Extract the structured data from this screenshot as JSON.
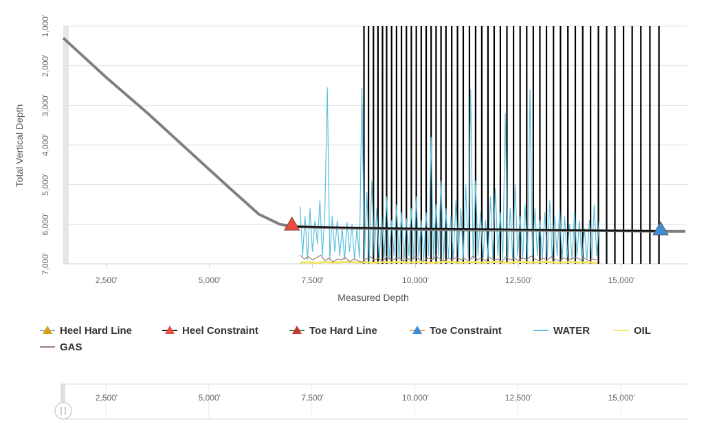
{
  "chart_data": {
    "type": "line",
    "xlabel": "Measured Depth",
    "ylabel": "Total Vertical Depth",
    "xlim": [
      1450,
      16600
    ],
    "ylim": [
      1000,
      7000
    ],
    "y_inverted": true,
    "x_ticks": [
      "2,500'",
      "5,000'",
      "7,500'",
      "10,000'",
      "12,500'",
      "15,000'"
    ],
    "x_tick_values": [
      2500,
      5000,
      7500,
      10000,
      12500,
      15000
    ],
    "y_ticks": [
      "1,000'",
      "2,000'",
      "3,000'",
      "4,000'",
      "5,000'",
      "6,000'",
      "7,000'"
    ],
    "y_tick_values": [
      1000,
      2000,
      3000,
      4000,
      5000,
      6000,
      7000
    ],
    "grid": true,
    "legend_position": "bottom",
    "wellpath": {
      "x": [
        1450,
        2500,
        3500,
        4500,
        5500,
        6200,
        6700,
        7000,
        8000,
        10000,
        12000,
        14000,
        15000,
        16000,
        16550
      ],
      "y": [
        1300,
        2300,
        3200,
        4150,
        5100,
        5750,
        6000,
        6060,
        6090,
        6130,
        6150,
        6160,
        6170,
        6180,
        6180
      ],
      "color": "#7f7f7f"
    },
    "lateral_line": {
      "x": [
        7000,
        8000,
        9000,
        10000,
        11000,
        12000,
        13000,
        14000,
        15000,
        16000
      ],
      "y": [
        6060,
        6080,
        6095,
        6110,
        6120,
        6130,
        6140,
        6150,
        6165,
        6175
      ],
      "color": "#111111"
    },
    "stage_lines_x": [
      8750,
      8860,
      8980,
      9090,
      9200,
      9300,
      9420,
      9540,
      9660,
      9780,
      9900,
      10020,
      10140,
      10260,
      10380,
      10500,
      10620,
      10740,
      10880,
      11020,
      11160,
      11310,
      11460,
      11610,
      11760,
      11910,
      12060,
      12220,
      12380,
      12540,
      12700,
      12860,
      13020,
      13180,
      13350,
      13520,
      13700,
      13880,
      14060,
      14250,
      14440,
      14640,
      14840,
      15050,
      15260,
      15470,
      15690,
      15910
    ],
    "heel_constraint": {
      "x": 7000,
      "y": 6060,
      "color": "#e84c3d"
    },
    "toe_constraint": {
      "x": 15950,
      "y": 6180,
      "color": "#3b8fd6"
    },
    "series": [
      {
        "name": "WATER",
        "color": "#5bc0de",
        "x": [
          7200,
          7260,
          7320,
          7380,
          7440,
          7500,
          7560,
          7620,
          7680,
          7740,
          7800,
          7860,
          7920,
          7980,
          8040,
          8100,
          8160,
          8220,
          8280,
          8340,
          8400,
          8460,
          8520,
          8580,
          8640,
          8700,
          8760,
          8820,
          8880,
          8940,
          9000,
          9060,
          9120,
          9180,
          9240,
          9300,
          9360,
          9420,
          9480,
          9540,
          9600,
          9660,
          9720,
          9780,
          9840,
          9900,
          9960,
          10020,
          10080,
          10140,
          10200,
          10260,
          10320,
          10380,
          10440,
          10500,
          10560,
          10620,
          10680,
          10740,
          10800,
          10860,
          10920,
          10980,
          11040,
          11100,
          11160,
          11220,
          11280,
          11340,
          11400,
          11460,
          11520,
          11580,
          11640,
          11700,
          11760,
          11820,
          11880,
          11940,
          12000,
          12060,
          12120,
          12180,
          12240,
          12300,
          12360,
          12420,
          12480,
          12540,
          12600,
          12660,
          12720,
          12780,
          12840,
          12900,
          12960,
          13020,
          13080,
          13140,
          13200,
          13260,
          13320,
          13380,
          13440,
          13500,
          13560,
          13620,
          13680,
          13740,
          13800,
          13860,
          13920,
          13980,
          14040,
          14100,
          14160,
          14220,
          14280,
          14340,
          14400,
          14460
        ],
        "y": [
          5550,
          6800,
          5800,
          6900,
          5600,
          6700,
          5900,
          6500,
          5400,
          6800,
          5700,
          2550,
          6900,
          5800,
          6700,
          5900,
          6800,
          6100,
          6900,
          5950,
          6700,
          6000,
          6900,
          6100,
          6850,
          2550,
          6900,
          5200,
          6950,
          4900,
          6800,
          5600,
          6900,
          5800,
          6850,
          5300,
          6900,
          5900,
          6800,
          5500,
          6900,
          5700,
          6950,
          5850,
          6800,
          5600,
          6900,
          5300,
          6850,
          5900,
          6900,
          5700,
          6800,
          3800,
          6900,
          5500,
          6800,
          4900,
          6900,
          5600,
          6850,
          5800,
          6900,
          5400,
          6800,
          5600,
          6900,
          5000,
          6850,
          2600,
          6900,
          4900,
          6800,
          5700,
          6900,
          5900,
          6850,
          5300,
          6900,
          5100,
          6800,
          5700,
          6900,
          3200,
          6850,
          5600,
          6900,
          5000,
          6800,
          5800,
          6900,
          5500,
          6850,
          2600,
          6900,
          5600,
          6800,
          5900,
          6900,
          5700,
          6850,
          5400,
          6900,
          5800,
          6800,
          5600,
          6900,
          5800,
          6850,
          6000,
          6900,
          5700,
          6800,
          5900,
          6950,
          6100,
          6900,
          5900,
          6850,
          5500,
          6800,
          5900
        ]
      },
      {
        "name": "OIL",
        "color": "#f5e663",
        "x": [
          7200,
          7400,
          7600,
          7800,
          8000,
          8200,
          8400,
          8600,
          8800,
          9000,
          9200,
          9400,
          9600,
          9800,
          10000,
          10200,
          10400,
          10600,
          10800,
          11000,
          11200,
          11400,
          11600,
          11800,
          12000,
          12200,
          12400,
          12600,
          12800,
          13000,
          13200,
          13400,
          13600,
          13800,
          14000,
          14200,
          14400
        ],
        "y": [
          6970,
          6960,
          6975,
          6955,
          6970,
          6960,
          6950,
          6970,
          6960,
          6975,
          6955,
          6965,
          6950,
          6970,
          6960,
          6955,
          6975,
          6960,
          6950,
          6970,
          6965,
          6955,
          6970,
          6960,
          6950,
          6975,
          6960,
          6955,
          6970,
          6960,
          6950,
          6970,
          6965,
          6955,
          6970,
          6960,
          6975
        ]
      },
      {
        "name": "GAS",
        "color": "#9c7f7f",
        "x": [
          7200,
          7300,
          7400,
          7500,
          7600,
          7700,
          7800,
          7900,
          8000,
          8100,
          8200,
          8300,
          8400,
          8500,
          8600,
          8700,
          8800,
          8900,
          9000,
          9100,
          9200,
          9300,
          9400,
          9500,
          9600,
          9700,
          9800,
          9900,
          10000,
          10100,
          10200,
          10300,
          10400,
          10500,
          10600,
          10700,
          10800,
          10900,
          11000,
          11100,
          11200,
          11300,
          11400,
          11500,
          11600,
          11700,
          11800,
          11900,
          12000,
          12100,
          12200,
          12300,
          12400,
          12500,
          12600,
          12700,
          12800,
          12900,
          13000,
          13100,
          13200,
          13300,
          13400,
          13500,
          13600,
          13700,
          13800,
          13900,
          14000,
          14100,
          14200,
          14300,
          14400
        ],
        "y": [
          6780,
          6880,
          6820,
          6900,
          6850,
          6780,
          6920,
          6860,
          6950,
          6880,
          6900,
          6840,
          6950,
          6880,
          6920,
          6960,
          6880,
          6820,
          6900,
          6860,
          6940,
          6820,
          6900,
          6880,
          6840,
          6930,
          6870,
          6900,
          6820,
          6890,
          6930,
          6850,
          6900,
          6800,
          6880,
          6920,
          6860,
          6900,
          6830,
          6900,
          6870,
          6930,
          6800,
          6890,
          6860,
          6920,
          6840,
          6900,
          6880,
          6950,
          6830,
          6900,
          6860,
          6920,
          6850,
          6900,
          6800,
          6880,
          6920,
          6860,
          6900,
          6820,
          6890,
          6930,
          6850,
          6900,
          6870,
          6830,
          6900,
          6860,
          6920,
          6880,
          6900
        ]
      }
    ],
    "legend": [
      {
        "label": "Heel Hard Line",
        "marker_color": "#d4a017",
        "line_color": "#8aa8c8"
      },
      {
        "label": "Heel Constraint",
        "marker_color": "#e84c3d",
        "line_color": "#222222"
      },
      {
        "label": "Toe Hard Line",
        "marker_color": "#c0392b",
        "line_color": "#2e8b57"
      },
      {
        "label": "Toe Constraint",
        "marker_color": "#3b8fd6",
        "line_color": "#f0a050"
      },
      {
        "label": "WATER",
        "line_color": "#5bc0de"
      },
      {
        "label": "OIL",
        "line_color": "#f5e663"
      },
      {
        "label": "GAS",
        "line_color": "#9c7f7f"
      }
    ],
    "navigator": {
      "x_ticks": [
        "2,500'",
        "5,000'",
        "7,500'",
        "10,000'",
        "12,500'",
        "15,000'"
      ]
    }
  }
}
